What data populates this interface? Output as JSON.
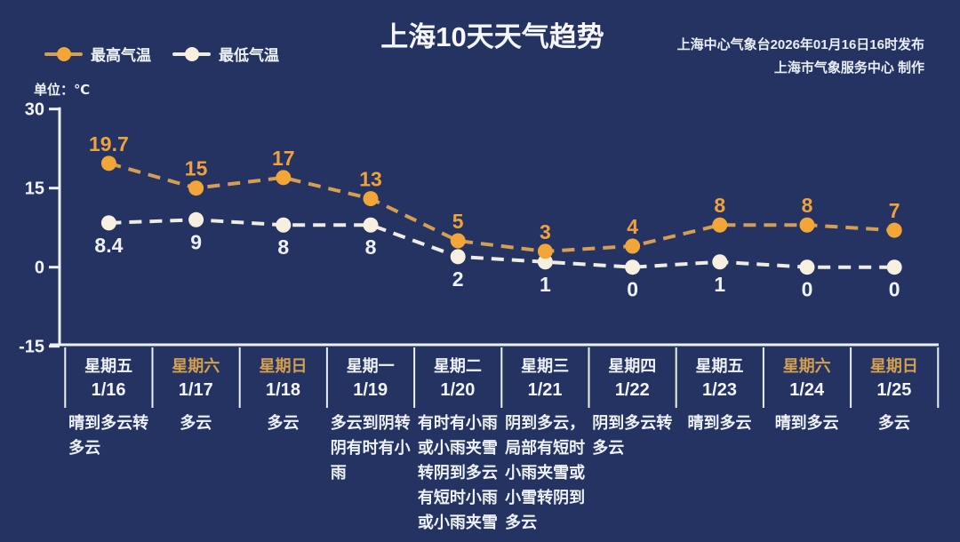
{
  "title": "上海10天天气趋势",
  "source": {
    "line1": "上海中心气象台2026年01月16日16时发布",
    "line2": "上海市气象服务中心  制作"
  },
  "legend": {
    "high_label": "最高气温",
    "low_label": "最低气温"
  },
  "unit_label": "单位：℃",
  "colors": {
    "background": "#243361",
    "axis": "#edf0f7",
    "high_point": "#f2a637",
    "high_line": "#d69e52",
    "high_text": "#eda23d",
    "low_point": "#f7f0e1",
    "low_line": "#efece3",
    "low_text": "#eef1f7",
    "weekend": "#d2a04f",
    "date_text": "#f2f4fa"
  },
  "chart_data": {
    "type": "line",
    "title": "上海10天天气趋势",
    "ylabel": "单位：℃",
    "ylim": [
      -15,
      30
    ],
    "yticks": [
      30,
      15,
      0,
      -15
    ],
    "grid": false,
    "legend_position": "top-left",
    "x": [
      "1/16",
      "1/17",
      "1/18",
      "1/19",
      "1/20",
      "1/21",
      "1/22",
      "1/23",
      "1/24",
      "1/25"
    ],
    "series": [
      {
        "name": "最高气温",
        "values": [
          19.7,
          15,
          17,
          13,
          5,
          3,
          4,
          8,
          8,
          7
        ]
      },
      {
        "name": "最低气温",
        "values": [
          8.4,
          9,
          8,
          8,
          2,
          1,
          0,
          1,
          0,
          0
        ]
      }
    ],
    "days": [
      {
        "weekday": "星期五",
        "date": "1/16",
        "weekend": false,
        "weather": "晴到多云转\n多云"
      },
      {
        "weekday": "星期六",
        "date": "1/17",
        "weekend": true,
        "weather": "多云"
      },
      {
        "weekday": "星期日",
        "date": "1/18",
        "weekend": true,
        "weather": "多云"
      },
      {
        "weekday": "星期一",
        "date": "1/19",
        "weekend": false,
        "weather": "多云到阴转\n阴有时有小\n雨"
      },
      {
        "weekday": "星期二",
        "date": "1/20",
        "weekend": false,
        "weather": "有时有小雨\n或小雨夹雪\n转阴到多云\n有短时小雨\n或小雨夹雪"
      },
      {
        "weekday": "星期三",
        "date": "1/21",
        "weekend": false,
        "weather": "阴到多云，\n局部有短时\n小雨夹雪或\n小雪转阴到\n多云"
      },
      {
        "weekday": "星期四",
        "date": "1/22",
        "weekend": false,
        "weather": "阴到多云转\n多云"
      },
      {
        "weekday": "星期五",
        "date": "1/23",
        "weekend": false,
        "weather": "晴到多云"
      },
      {
        "weekday": "星期六",
        "date": "1/24",
        "weekend": true,
        "weather": "晴到多云"
      },
      {
        "weekday": "星期日",
        "date": "1/25",
        "weekend": true,
        "weather": "多云"
      }
    ]
  }
}
